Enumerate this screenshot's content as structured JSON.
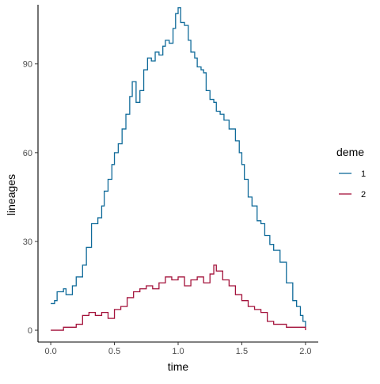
{
  "chart_data": {
    "type": "line",
    "title": "",
    "xlabel": "time",
    "ylabel": "lineages",
    "xlim": [
      -0.1,
      2.1
    ],
    "ylim": [
      -4,
      110
    ],
    "xticks": [
      0.0,
      0.5,
      1.0,
      1.5,
      2.0
    ],
    "xtick_labels": [
      "0.0",
      "0.5",
      "1.0",
      "1.5",
      "2.0"
    ],
    "yticks": [
      0,
      30,
      60,
      90
    ],
    "ytick_labels": [
      "0",
      "30",
      "60",
      "90"
    ],
    "grid": false,
    "legend": {
      "title": "deme",
      "position": "right"
    },
    "series": [
      {
        "name": "1",
        "color": "#0f6a99",
        "points": [
          [
            0.0,
            9
          ],
          [
            0.03,
            10
          ],
          [
            0.05,
            13
          ],
          [
            0.1,
            14
          ],
          [
            0.12,
            12
          ],
          [
            0.17,
            15
          ],
          [
            0.2,
            18
          ],
          [
            0.25,
            22
          ],
          [
            0.28,
            28
          ],
          [
            0.32,
            36
          ],
          [
            0.37,
            38
          ],
          [
            0.4,
            42
          ],
          [
            0.42,
            47
          ],
          [
            0.45,
            51
          ],
          [
            0.48,
            56
          ],
          [
            0.5,
            60
          ],
          [
            0.53,
            63
          ],
          [
            0.56,
            68
          ],
          [
            0.59,
            73
          ],
          [
            0.62,
            79
          ],
          [
            0.64,
            84
          ],
          [
            0.67,
            77
          ],
          [
            0.7,
            81
          ],
          [
            0.73,
            88
          ],
          [
            0.76,
            92
          ],
          [
            0.79,
            91
          ],
          [
            0.82,
            94
          ],
          [
            0.85,
            93
          ],
          [
            0.88,
            96
          ],
          [
            0.9,
            98
          ],
          [
            0.93,
            97
          ],
          [
            0.96,
            102
          ],
          [
            0.98,
            107
          ],
          [
            1.0,
            109
          ],
          [
            1.02,
            104
          ],
          [
            1.05,
            103
          ],
          [
            1.08,
            98
          ],
          [
            1.1,
            94
          ],
          [
            1.13,
            92
          ],
          [
            1.15,
            89
          ],
          [
            1.18,
            88
          ],
          [
            1.2,
            87
          ],
          [
            1.22,
            81
          ],
          [
            1.25,
            78
          ],
          [
            1.28,
            77
          ],
          [
            1.3,
            74
          ],
          [
            1.33,
            73
          ],
          [
            1.36,
            71
          ],
          [
            1.4,
            68
          ],
          [
            1.45,
            64
          ],
          [
            1.48,
            60
          ],
          [
            1.5,
            56
          ],
          [
            1.52,
            51
          ],
          [
            1.55,
            45
          ],
          [
            1.58,
            42
          ],
          [
            1.62,
            37
          ],
          [
            1.65,
            36
          ],
          [
            1.68,
            32
          ],
          [
            1.72,
            29
          ],
          [
            1.75,
            27
          ],
          [
            1.8,
            23
          ],
          [
            1.85,
            16
          ],
          [
            1.9,
            10
          ],
          [
            1.93,
            8
          ],
          [
            1.96,
            5
          ],
          [
            1.98,
            3
          ],
          [
            2.0,
            1
          ]
        ]
      },
      {
        "name": "2",
        "color": "#a3113a",
        "points": [
          [
            0.0,
            0
          ],
          [
            0.1,
            1
          ],
          [
            0.2,
            2
          ],
          [
            0.25,
            5
          ],
          [
            0.3,
            6
          ],
          [
            0.35,
            5
          ],
          [
            0.4,
            6
          ],
          [
            0.45,
            4
          ],
          [
            0.5,
            7
          ],
          [
            0.55,
            8
          ],
          [
            0.6,
            11
          ],
          [
            0.65,
            13
          ],
          [
            0.7,
            14
          ],
          [
            0.75,
            15
          ],
          [
            0.8,
            14
          ],
          [
            0.85,
            16
          ],
          [
            0.9,
            18
          ],
          [
            0.95,
            17
          ],
          [
            1.0,
            18
          ],
          [
            1.05,
            15
          ],
          [
            1.1,
            17
          ],
          [
            1.15,
            18
          ],
          [
            1.2,
            16
          ],
          [
            1.25,
            19
          ],
          [
            1.28,
            22
          ],
          [
            1.3,
            20
          ],
          [
            1.35,
            17
          ],
          [
            1.4,
            15
          ],
          [
            1.45,
            12
          ],
          [
            1.5,
            10
          ],
          [
            1.55,
            8
          ],
          [
            1.6,
            7
          ],
          [
            1.65,
            6
          ],
          [
            1.7,
            3
          ],
          [
            1.75,
            2
          ],
          [
            1.8,
            2
          ],
          [
            1.85,
            1
          ],
          [
            1.9,
            1
          ],
          [
            2.0,
            0
          ]
        ]
      }
    ]
  }
}
